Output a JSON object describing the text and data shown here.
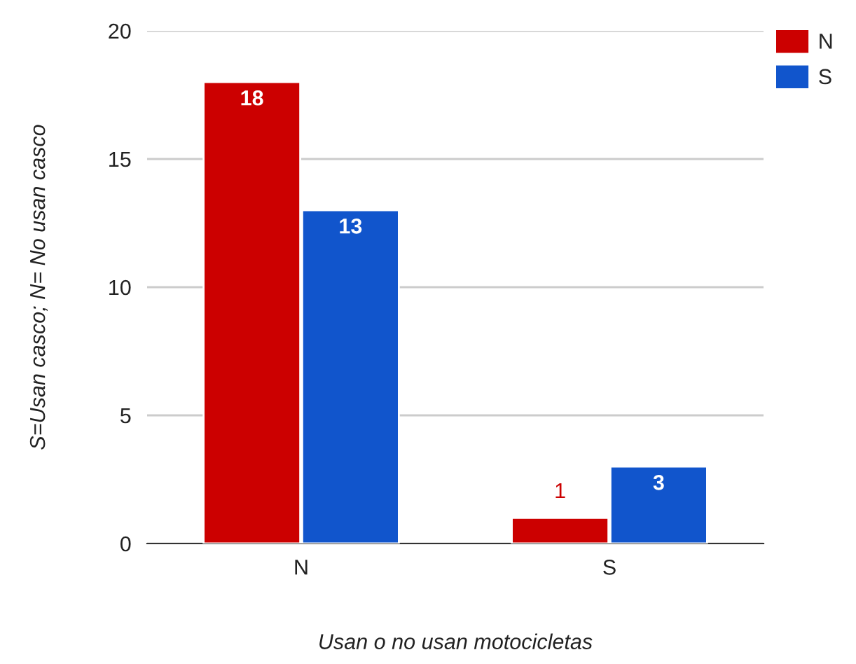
{
  "chart_data": {
    "type": "bar",
    "xlabel": "Usan o no usan motocicletas",
    "ylabel": "S=Usan casco; N= No usan casco",
    "categories": [
      "N",
      "S"
    ],
    "series": [
      {
        "name": "N",
        "color": "#cc0000",
        "values": [
          18,
          1
        ]
      },
      {
        "name": "S",
        "color": "#1155cc",
        "values": [
          13,
          3
        ]
      }
    ],
    "ylim": [
      0,
      20
    ],
    "yticks": [
      0,
      5,
      10,
      15,
      20
    ],
    "grid": "y",
    "legend": "top right",
    "data_labels": true
  }
}
